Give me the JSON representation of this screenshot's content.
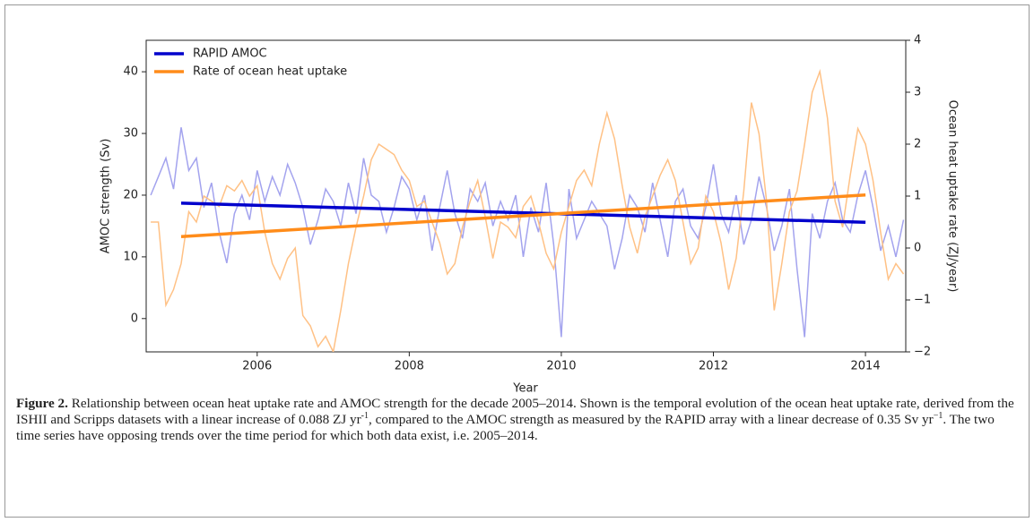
{
  "chart_data": {
    "type": "line",
    "xlabel": "Year",
    "ylabel": "AMOC strength (Sv)",
    "y2label": "Ocean heat uptake rate (ZJ/year)",
    "xlim": [
      2004.54,
      2014.53
    ],
    "xticks": [
      2006,
      2008,
      2010,
      2012,
      2014
    ],
    "ylim": [
      -5.4,
      45.1
    ],
    "yticks": [
      0,
      10,
      20,
      30,
      40
    ],
    "y2lim": [
      -2,
      4
    ],
    "y2ticks": [
      {
        "value": -2,
        "label": "−2"
      },
      {
        "value": -1,
        "label": "−1"
      },
      0,
      1,
      2,
      3,
      4
    ],
    "legend": "upper left",
    "x": [
      2004.6,
      2004.7,
      2004.8,
      2004.9,
      2005.0,
      2005.1,
      2005.2,
      2005.3,
      2005.4,
      2005.5,
      2005.6,
      2005.7,
      2005.8,
      2005.9,
      2006.0,
      2006.1,
      2006.2,
      2006.3,
      2006.4,
      2006.5,
      2006.6,
      2006.7,
      2006.8,
      2006.9,
      2007.0,
      2007.1,
      2007.2,
      2007.3,
      2007.4,
      2007.5,
      2007.6,
      2007.7,
      2007.8,
      2007.9,
      2008.0,
      2008.1,
      2008.2,
      2008.3,
      2008.4,
      2008.5,
      2008.6,
      2008.7,
      2008.8,
      2008.9,
      2009.0,
      2009.1,
      2009.2,
      2009.3,
      2009.4,
      2009.5,
      2009.6,
      2009.7,
      2009.8,
      2009.9,
      2010.0,
      2010.1,
      2010.2,
      2010.3,
      2010.4,
      2010.5,
      2010.6,
      2010.7,
      2010.8,
      2010.9,
      2011.0,
      2011.1,
      2011.2,
      2011.3,
      2011.4,
      2011.5,
      2011.6,
      2011.7,
      2011.8,
      2011.9,
      2012.0,
      2012.1,
      2012.2,
      2012.3,
      2012.4,
      2012.5,
      2012.6,
      2012.7,
      2012.8,
      2012.9,
      2013.0,
      2013.1,
      2013.2,
      2013.3,
      2013.4,
      2013.5,
      2013.6,
      2013.7,
      2013.8,
      2013.9,
      2014.0,
      2014.1,
      2014.2,
      2014.3,
      2014.4,
      2014.5
    ],
    "series": [
      {
        "color": "#a3a3ee",
        "width": 1.5,
        "values": [
          20,
          23,
          26,
          21,
          31,
          24,
          26,
          18,
          22,
          14,
          9,
          17,
          20,
          16,
          24,
          19,
          23,
          20,
          25,
          22,
          18,
          12,
          16,
          21,
          19,
          15,
          22,
          17,
          26,
          20,
          19,
          14,
          18,
          23,
          21,
          16,
          20,
          11,
          18,
          24,
          17,
          13,
          21,
          19,
          22,
          15,
          19,
          16,
          20,
          10,
          18,
          14,
          22,
          12,
          -3,
          21,
          13,
          16,
          19,
          17,
          15,
          8,
          13,
          20,
          18,
          14,
          22,
          16,
          10,
          19,
          21,
          15,
          13,
          18,
          25,
          17,
          14,
          20,
          12,
          16,
          23,
          18,
          11,
          15,
          21,
          8,
          -3,
          17,
          13,
          19,
          22,
          16,
          14,
          20,
          24,
          18,
          11,
          15,
          10,
          16
        ]
      },
      {
        "color": "#ffc185",
        "width": 1.5,
        "axis": "y2",
        "values": [
          0.5,
          0.5,
          -1.1,
          -0.8,
          -0.3,
          0.7,
          0.5,
          1.0,
          0.9,
          0.8,
          1.2,
          1.1,
          1.3,
          1.0,
          1.2,
          0.3,
          -0.3,
          -0.6,
          -0.2,
          0.0,
          -1.3,
          -1.5,
          -1.9,
          -1.7,
          -2.0,
          -1.2,
          -0.3,
          0.4,
          1.0,
          1.7,
          2.0,
          1.9,
          1.8,
          1.5,
          1.3,
          0.8,
          0.9,
          0.5,
          0.1,
          -0.5,
          -0.3,
          0.4,
          0.9,
          1.3,
          0.6,
          -0.2,
          0.5,
          0.4,
          0.2,
          0.8,
          1.0,
          0.5,
          -0.1,
          -0.4,
          0.3,
          0.8,
          1.3,
          1.5,
          1.2,
          2.0,
          2.6,
          2.1,
          1.2,
          0.4,
          -0.1,
          0.6,
          1.0,
          1.4,
          1.7,
          1.3,
          0.5,
          -0.3,
          0.0,
          1.0,
          0.7,
          0.1,
          -0.8,
          -0.2,
          1.1,
          2.8,
          2.2,
          0.9,
          -1.2,
          -0.3,
          0.7,
          1.1,
          2.0,
          3.0,
          3.4,
          2.5,
          0.9,
          0.4,
          1.4,
          2.3,
          2.0,
          1.3,
          0.3,
          -0.6,
          -0.3,
          -0.5
        ]
      },
      {
        "name": "RAPID AMOC",
        "color": "#0000cc",
        "width": 3.5,
        "x": [
          2005,
          2014
        ],
        "values": [
          18.7,
          15.6
        ]
      },
      {
        "name": "Rate of ocean heat uptake",
        "color": "#ff8c1a",
        "width": 3.5,
        "axis": "y2",
        "x": [
          2005,
          2014
        ],
        "values": [
          0.22,
          1.02
        ]
      }
    ]
  },
  "caption": {
    "label": "Figure 2.",
    "parts": [
      " Relationship between ocean heat uptake rate and AMOC strength for the decade 2005–2014. Shown is the temporal evolution of the ocean heat uptake rate, derived from the ISHII and Scripps datasets with a linear increase of 0.088 ZJ yr",
      "-1",
      ", compared to the AMOC strength as measured by the RAPID array with a linear decrease of 0.35 Sv yr",
      "−1",
      ". The two time series have opposing trends over the time period for which both data exist, i.e. 2005–2014."
    ]
  }
}
